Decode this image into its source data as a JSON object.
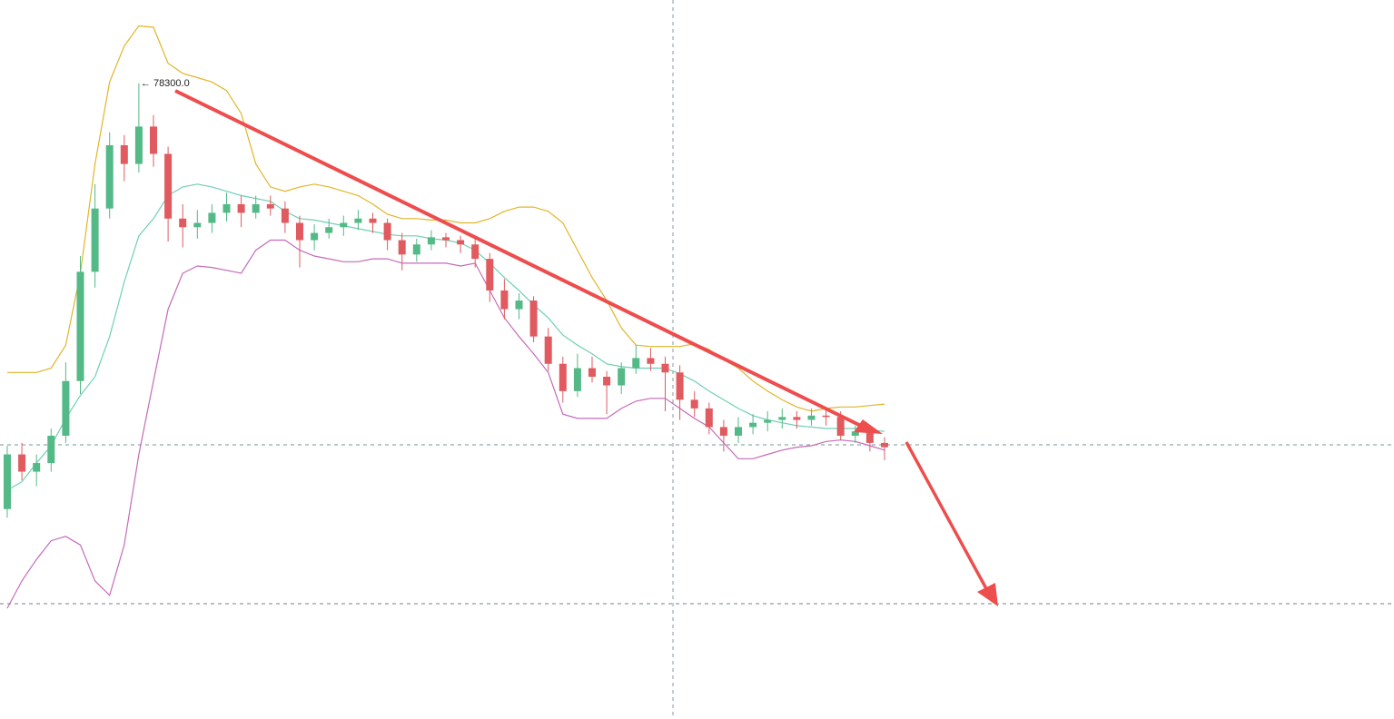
{
  "chart_data": {
    "type": "candlestick",
    "ylim": [
      56200,
      81200
    ],
    "up_color": "#53b987",
    "down_color": "#e05a5f",
    "candles": [
      [
        63500,
        65700,
        63200,
        65400
      ],
      [
        65400,
        65800,
        64500,
        64800
      ],
      [
        64800,
        65400,
        64300,
        65100
      ],
      [
        65100,
        66300,
        64800,
        66050
      ],
      [
        66050,
        68600,
        65800,
        67950
      ],
      [
        67950,
        72300,
        67500,
        71750
      ],
      [
        71750,
        74800,
        71200,
        73950
      ],
      [
        73950,
        76600,
        73600,
        76150
      ],
      [
        76150,
        76500,
        74900,
        75500
      ],
      [
        75500,
        78300,
        75200,
        76800
      ],
      [
        76800,
        77200,
        75400,
        75850
      ],
      [
        75850,
        76100,
        72800,
        73600
      ],
      [
        73600,
        74100,
        72600,
        73300
      ],
      [
        73300,
        73900,
        72900,
        73450
      ],
      [
        73450,
        74100,
        73100,
        73800
      ],
      [
        73800,
        74500,
        73500,
        74100
      ],
      [
        74100,
        74400,
        73300,
        73800
      ],
      [
        73800,
        74400,
        73600,
        74100
      ],
      [
        74100,
        74400,
        73700,
        73950
      ],
      [
        73950,
        74200,
        73100,
        73450
      ],
      [
        73450,
        73700,
        71900,
        72850
      ],
      [
        72850,
        73400,
        72500,
        73100
      ],
      [
        73100,
        73600,
        72900,
        73300
      ],
      [
        73300,
        73700,
        73000,
        73450
      ],
      [
        73450,
        73900,
        73200,
        73600
      ],
      [
        73600,
        73800,
        73100,
        73450
      ],
      [
        73450,
        73600,
        72500,
        72850
      ],
      [
        72850,
        73100,
        71800,
        72350
      ],
      [
        72350,
        72900,
        72100,
        72700
      ],
      [
        72700,
        73200,
        72500,
        72950
      ],
      [
        72950,
        73100,
        72600,
        72850
      ],
      [
        72850,
        73000,
        72400,
        72700
      ],
      [
        72700,
        72900,
        71900,
        72200
      ],
      [
        72200,
        72400,
        70700,
        71100
      ],
      [
        71100,
        71500,
        70100,
        70450
      ],
      [
        70450,
        71000,
        70100,
        70750
      ],
      [
        70750,
        70900,
        69300,
        69500
      ],
      [
        69500,
        69800,
        68300,
        68550
      ],
      [
        68550,
        68800,
        67200,
        67600
      ],
      [
        67600,
        68900,
        67400,
        68400
      ],
      [
        68400,
        68800,
        67900,
        68100
      ],
      [
        68100,
        68300,
        66800,
        67800
      ],
      [
        67800,
        68600,
        67500,
        68400
      ],
      [
        68400,
        69200,
        68200,
        68750
      ],
      [
        68750,
        69100,
        68300,
        68550
      ],
      [
        68550,
        68800,
        66900,
        68250
      ],
      [
        68250,
        68500,
        66600,
        67300
      ],
      [
        67300,
        67600,
        66700,
        67000
      ],
      [
        67000,
        67200,
        66100,
        66350
      ],
      [
        66350,
        66600,
        65500,
        66050
      ],
      [
        66050,
        66700,
        65800,
        66350
      ],
      [
        66350,
        66800,
        66100,
        66500
      ],
      [
        66500,
        66900,
        66200,
        66600
      ],
      [
        66600,
        67000,
        66300,
        66700
      ],
      [
        66700,
        66900,
        66300,
        66600
      ],
      [
        66600,
        67000,
        66400,
        66750
      ],
      [
        66750,
        67000,
        66400,
        66700
      ],
      [
        66700,
        66900,
        65900,
        66050
      ],
      [
        66050,
        66400,
        65800,
        66200
      ],
      [
        66200,
        66400,
        65500,
        65800
      ],
      [
        65800,
        66000,
        65200,
        65650
      ]
    ],
    "bands": [
      {
        "color": "#e2b52a",
        "values": [
          68250,
          68250,
          68250,
          68400,
          69200,
          71700,
          75500,
          78350,
          79600,
          80300,
          80250,
          79000,
          78650,
          78500,
          78350,
          78050,
          77250,
          75500,
          74700,
          74550,
          74700,
          74800,
          74700,
          74550,
          74400,
          74100,
          73750,
          73600,
          73600,
          73550,
          73550,
          73450,
          73450,
          73600,
          73850,
          74000,
          74000,
          73850,
          73450,
          72500,
          71550,
          70750,
          69800,
          69200,
          69150,
          69150,
          69150,
          69250,
          69050,
          68700,
          68400,
          67950,
          67600,
          67300,
          67050,
          66900,
          67000,
          67050,
          67050,
          67100,
          67150
        ]
      },
      {
        "color": "#6fcfb5",
        "values": [
          64150,
          64450,
          65100,
          65700,
          66650,
          67450,
          68100,
          69500,
          71400,
          73000,
          73600,
          74400,
          74700,
          74800,
          74700,
          74550,
          74400,
          74300,
          74200,
          73850,
          73600,
          73550,
          73450,
          73350,
          73250,
          73150,
          73050,
          73000,
          73000,
          72900,
          72850,
          72750,
          72500,
          72050,
          71550,
          71100,
          70600,
          70150,
          69550,
          69200,
          68900,
          68550,
          68450,
          68400,
          68400,
          68400,
          68200,
          67950,
          67600,
          67300,
          67000,
          66750,
          66600,
          66500,
          66400,
          66350,
          66300,
          66300,
          66300,
          66250,
          66200
        ]
      },
      {
        "color": "#c46bb8",
        "values": [
          60050,
          61000,
          61750,
          62400,
          62550,
          62250,
          61000,
          60500,
          62250,
          65400,
          67950,
          70450,
          71700,
          71950,
          71900,
          71800,
          71700,
          72500,
          72850,
          72850,
          72500,
          72300,
          72200,
          72100,
          72100,
          72200,
          72200,
          72050,
          72050,
          72050,
          72050,
          71950,
          72050,
          71100,
          70150,
          69500,
          68900,
          68250,
          66800,
          66650,
          66650,
          66650,
          67000,
          67250,
          67350,
          67350,
          67000,
          66650,
          66350,
          65800,
          65250,
          65250,
          65400,
          65550,
          65650,
          65700,
          65850,
          65900,
          65850,
          65700,
          65550
        ]
      }
    ],
    "annotation": "← 78300.0"
  }
}
